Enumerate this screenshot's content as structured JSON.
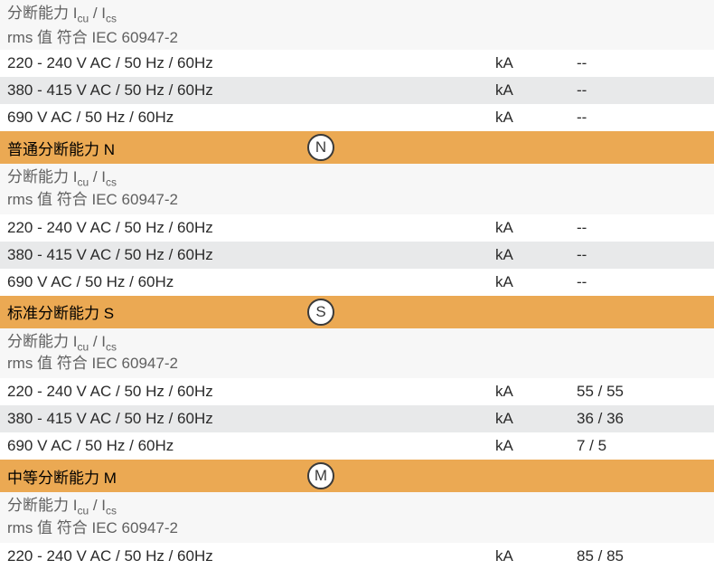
{
  "colors": {
    "header_bg": "#eba953",
    "grey_bg": "#e8e9ea",
    "white_bg": "#ffffff",
    "subheader_bg": "#f7f7f7",
    "text_primary": "#2a2a2a",
    "text_secondary": "#606060",
    "badge_border": "#3a3a3a"
  },
  "partial_top": {
    "line1_prefix": "分断能力 I",
    "line1_sub1": "cu",
    "line1_mid": " / I",
    "line1_sub2": "cs",
    "line2": "rms 值 符合 IEC 60947-2"
  },
  "top_rows": [
    {
      "label": "220 - 240 V AC / 50 Hz / 60Hz",
      "unit": "kA",
      "value": "--",
      "bg": "white"
    },
    {
      "label": "380 - 415 V AC / 50 Hz / 60Hz",
      "unit": "kA",
      "value": "--",
      "bg": "grey"
    },
    {
      "label": "690 V AC / 50 Hz / 60Hz",
      "unit": "kA",
      "value": "--",
      "bg": "white"
    }
  ],
  "sections": [
    {
      "title": "普通分断能力 N",
      "badge": "N",
      "subheader": {
        "line1_prefix": "分断能力 I",
        "line1_sub1": "cu",
        "line1_mid": " / I",
        "line1_sub2": "cs",
        "line2": "rms 值 符合 IEC 60947-2"
      },
      "rows": [
        {
          "label": "220 - 240 V AC / 50 Hz / 60Hz",
          "unit": "kA",
          "value": "--",
          "bg": "white"
        },
        {
          "label": "380 - 415 V AC / 50 Hz / 60Hz",
          "unit": "kA",
          "value": "--",
          "bg": "grey"
        },
        {
          "label": "690 V AC / 50 Hz / 60Hz",
          "unit": "kA",
          "value": "--",
          "bg": "white"
        }
      ]
    },
    {
      "title": "标准分断能力 S",
      "badge": "S",
      "subheader": {
        "line1_prefix": "分断能力 I",
        "line1_sub1": "cu",
        "line1_mid": " / I",
        "line1_sub2": "cs",
        "line2": "rms 值 符合 IEC 60947-2"
      },
      "rows": [
        {
          "label": "220 - 240 V AC / 50 Hz / 60Hz",
          "unit": "kA",
          "value": "55 / 55",
          "bg": "white"
        },
        {
          "label": "380 - 415 V AC / 50 Hz / 60Hz",
          "unit": "kA",
          "value": "36 / 36",
          "bg": "grey"
        },
        {
          "label": "690 V AC / 50 Hz / 60Hz",
          "unit": "kA",
          "value": "7 / 5",
          "bg": "white"
        }
      ]
    },
    {
      "title": "中等分断能力 M",
      "badge": "M",
      "subheader": {
        "line1_prefix": "分断能力 I",
        "line1_sub1": "cu",
        "line1_mid": " / I",
        "line1_sub2": "cs",
        "line2": "rms 值 符合 IEC 60947-2"
      },
      "rows": [
        {
          "label": "220 - 240 V AC / 50 Hz / 60Hz",
          "unit": "kA",
          "value": "85 / 85",
          "bg": "white"
        }
      ]
    }
  ]
}
